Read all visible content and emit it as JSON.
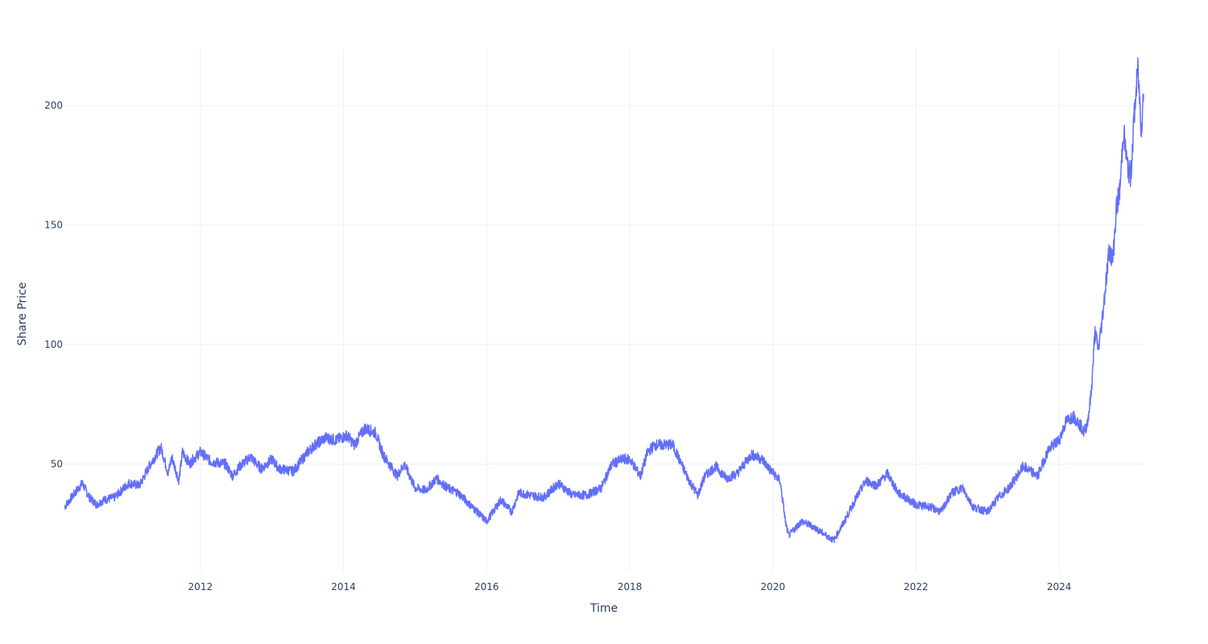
{
  "chart_data": {
    "type": "line",
    "title": "",
    "xlabel": "Time",
    "ylabel": "Share Price",
    "x_ticks": [
      "2012",
      "2014",
      "2016",
      "2018",
      "2020",
      "2022",
      "2024"
    ],
    "y_ticks": [
      50,
      100,
      150,
      200
    ],
    "xlim": [
      2010.1,
      2025.18
    ],
    "ylim": [
      5,
      224
    ],
    "grid": true,
    "legend": "none",
    "line_color": "#636efa",
    "grid_color": "#ebf0f8",
    "text_color": "#2a3f5f",
    "series": [
      {
        "x": [
          2010.1,
          2010.25,
          2010.35,
          2010.45,
          2010.55,
          2010.65,
          2010.8,
          2011.0,
          2011.15,
          2011.3,
          2011.45,
          2011.55,
          2011.6,
          2011.7,
          2011.75,
          2011.85,
          2011.9,
          2012.0,
          2012.15,
          2012.35,
          2012.45,
          2012.55,
          2012.7,
          2012.85,
          2013.0,
          2013.1,
          2013.3,
          2013.5,
          2013.6,
          2013.75,
          2013.9,
          2014.05,
          2014.15,
          2014.3,
          2014.45,
          2014.55,
          2014.75,
          2014.85,
          2015.0,
          2015.15,
          2015.3,
          2015.45,
          2015.6,
          2015.8,
          2016.0,
          2016.2,
          2016.35,
          2016.45,
          2016.6,
          2016.8,
          2017.0,
          2017.2,
          2017.4,
          2017.6,
          2017.75,
          2017.9,
          2018.0,
          2018.15,
          2018.25,
          2018.35,
          2018.5,
          2018.6,
          2018.75,
          2018.85,
          2018.95,
          2019.05,
          2019.2,
          2019.35,
          2019.5,
          2019.6,
          2019.7,
          2019.85,
          2019.95,
          2020.1,
          2020.18,
          2020.22,
          2020.4,
          2020.55,
          2020.7,
          2020.85,
          2021.0,
          2021.15,
          2021.3,
          2021.45,
          2021.6,
          2021.75,
          2022.0,
          2022.2,
          2022.35,
          2022.5,
          2022.65,
          2022.8,
          2023.0,
          2023.15,
          2023.3,
          2023.5,
          2023.7,
          2023.85,
          2024.0,
          2024.1,
          2024.2,
          2024.3,
          2024.35,
          2024.4,
          2024.45,
          2024.5,
          2024.55,
          2024.6,
          2024.65,
          2024.7,
          2024.75,
          2024.8,
          2024.85,
          2024.9,
          2024.95,
          2025.0,
          2025.05,
          2025.1,
          2025.15,
          2025.18
        ],
        "y": [
          32,
          38,
          42,
          36,
          33,
          35,
          36,
          42,
          41,
          50,
          57,
          46,
          53,
          43,
          55,
          50,
          52,
          55,
          51,
          50,
          45,
          49,
          53,
          48,
          52,
          48,
          47,
          55,
          58,
          61,
          60,
          62,
          58,
          65,
          63,
          54,
          45,
          50,
          40,
          39,
          44,
          40,
          38,
          32,
          26,
          35,
          30,
          38,
          37,
          36,
          42,
          37,
          37,
          40,
          50,
          52,
          52,
          45,
          55,
          58,
          58,
          58,
          48,
          42,
          37,
          45,
          49,
          44,
          46,
          50,
          54,
          52,
          48,
          43,
          25,
          20,
          26,
          24,
          21,
          18,
          26,
          35,
          43,
          41,
          46,
          38,
          33,
          32,
          30,
          38,
          40,
          32,
          30,
          36,
          40,
          49,
          45,
          56,
          60,
          68,
          70,
          66,
          63,
          68,
          80,
          105,
          98,
          110,
          125,
          140,
          135,
          157,
          165,
          190,
          175,
          170,
          196,
          215,
          190,
          205
        ]
      }
    ]
  }
}
